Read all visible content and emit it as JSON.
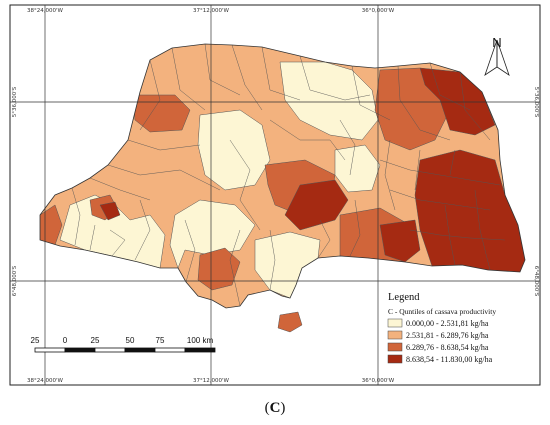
{
  "map": {
    "grid_labels": {
      "top": [
        "38°24,000'W",
        "37°12,000'W",
        "36°0,000'W"
      ],
      "bottom": [
        "38°24,000'W",
        "37°12,000'W",
        "36°0,000'W"
      ],
      "left": [
        "5°36,000'S",
        "6°48,000'S"
      ],
      "right": [
        "5°36,000'S",
        "6°48,000'S"
      ]
    },
    "north_label": "N",
    "scale_bar": {
      "labels": [
        "25",
        "0",
        "25",
        "50",
        "75",
        "100 km"
      ]
    }
  },
  "legend": {
    "title": "Legend",
    "subtitle": "C - Quntiles of cassava productivity",
    "items": [
      {
        "label": "0.000,00 - 2.531,81 kg/ha",
        "color": "#fdf6d4"
      },
      {
        "label": "2.531,81 - 6.289,76 kg/ha",
        "color": "#f3b27e"
      },
      {
        "label": "6.289,76 - 8.638,54 kg/ha",
        "color": "#d0653a"
      },
      {
        "label": "8.638,54 - 11.830,00 kg/ha",
        "color": "#a52a12"
      }
    ]
  },
  "caption": {
    "open": "(",
    "letter": "C",
    "close": ")"
  }
}
